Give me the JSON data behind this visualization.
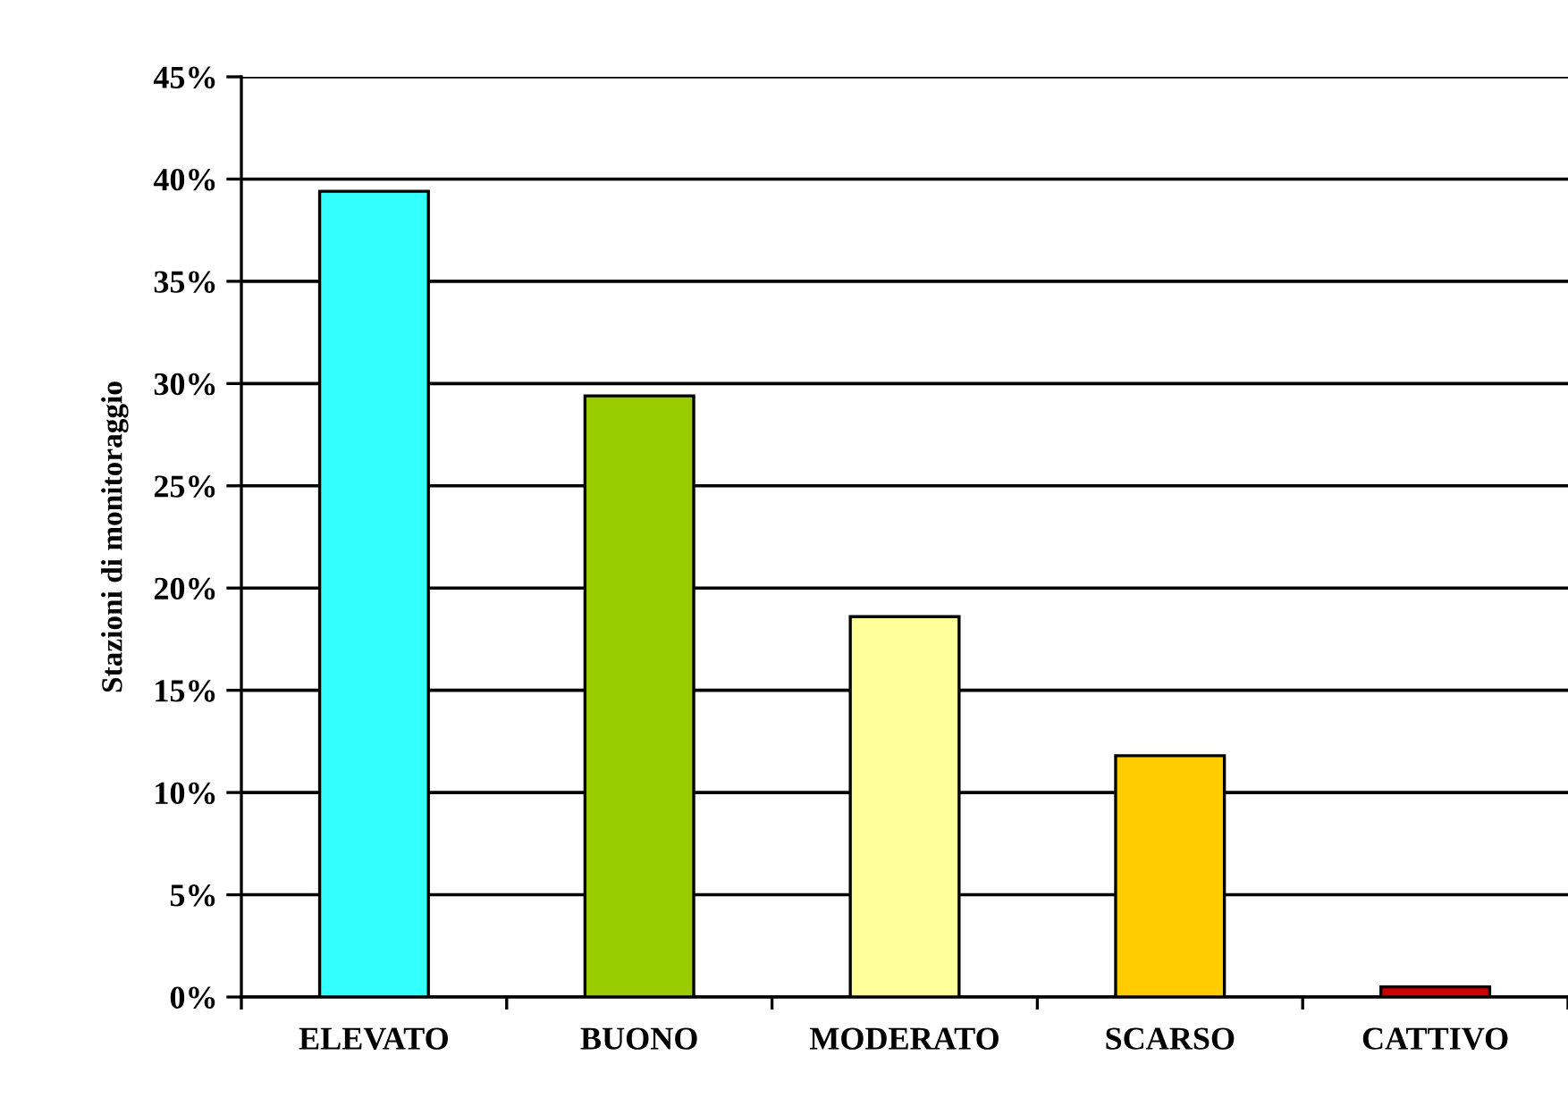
{
  "chart_data": {
    "type": "bar",
    "ylabel": "Stazioni di monitoraggio",
    "categories": [
      "ELEVATO",
      "BUONO",
      "MODERATO",
      "SCARSO",
      "CATTIVO"
    ],
    "values": [
      39.4,
      29.4,
      18.6,
      11.8,
      0.5
    ],
    "colors": [
      "#33ffff",
      "#99cc00",
      "#ffff99",
      "#ffcc00",
      "#cc0000"
    ],
    "ylim": [
      0,
      45
    ],
    "yticks": [
      {
        "value": 0,
        "label": "0%"
      },
      {
        "value": 5,
        "label": "5%"
      },
      {
        "value": 10,
        "label": "10%"
      },
      {
        "value": 15,
        "label": "15%"
      },
      {
        "value": 20,
        "label": "20%"
      },
      {
        "value": 25,
        "label": "25%"
      },
      {
        "value": 30,
        "label": "30%"
      },
      {
        "value": 35,
        "label": "35%"
      },
      {
        "value": 40,
        "label": "40%"
      },
      {
        "value": 45,
        "label": "45%"
      }
    ],
    "grid": "y",
    "legend": false
  }
}
